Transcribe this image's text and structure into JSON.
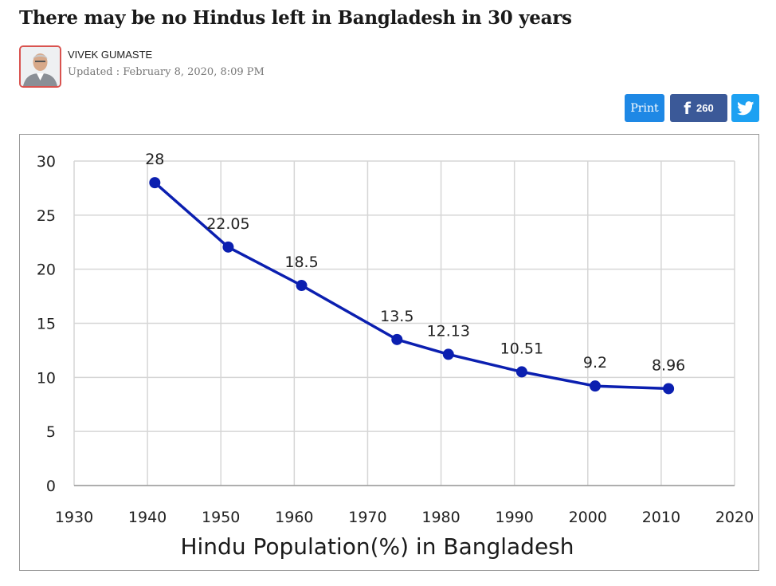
{
  "article": {
    "headline": "There may be no Hindus left in Bangladesh in 30 years",
    "author": "VIVEK GUMASTE",
    "updated": "Updated : February 8, 2020, 8:09 PM"
  },
  "share": {
    "print_label": "Print",
    "facebook_count": "260",
    "facebook_icon": "facebook-icon",
    "twitter_icon": "twitter-icon",
    "colors": {
      "print": "#1e88e5",
      "facebook": "#3b5998",
      "twitter": "#1da1f2"
    }
  },
  "chart_data": {
    "type": "line",
    "title": "Hindu Population(%) in Bangladesh",
    "xlabel": "",
    "ylabel": "",
    "xlim": [
      1930,
      2020
    ],
    "ylim": [
      0,
      30
    ],
    "xticks": [
      1930,
      1940,
      1950,
      1960,
      1970,
      1980,
      1990,
      2000,
      2010,
      2020
    ],
    "yticks": [
      0,
      5,
      10,
      15,
      20,
      25,
      30
    ],
    "grid": true,
    "legend": "none",
    "series": [
      {
        "color": "#0b1fb0",
        "x": [
          1941,
          1951,
          1961,
          1974,
          1981,
          1991,
          2001,
          2011
        ],
        "y": [
          28,
          22.05,
          18.5,
          13.5,
          12.13,
          10.51,
          9.2,
          8.96
        ],
        "labels": [
          "28",
          "22.05",
          "18.5",
          "13.5",
          "12.13",
          "10.51",
          "9.2",
          "8.96"
        ]
      }
    ]
  }
}
